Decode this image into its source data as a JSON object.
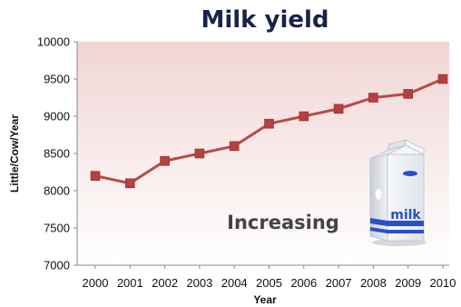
{
  "chart_data": {
    "type": "line",
    "title": "Milk yield",
    "xlabel": "Year",
    "ylabel": "Little/Cow/Year",
    "ylim": [
      7000,
      10000
    ],
    "yticks": [
      7000,
      7500,
      8000,
      8500,
      9000,
      9500,
      10000
    ],
    "categories": [
      "2000",
      "2001",
      "2002",
      "2003",
      "2004",
      "2005",
      "2006",
      "2007",
      "2008",
      "2009",
      "2010"
    ],
    "series": [
      {
        "values": [
          8200,
          8100,
          8400,
          8500,
          8600,
          8900,
          9000,
          9100,
          9250,
          9300,
          9500
        ]
      }
    ],
    "annotation": "Increasing",
    "carton_label": "milk",
    "grid": false,
    "legend": "none",
    "colors": {
      "line": "#b84a4a",
      "marker": "#b5403f",
      "plot_bg_top": "#f1d5d5",
      "plot_bg_bottom": "#ffffff",
      "title": "#17234a",
      "carton_blue": "#2a4fc9"
    }
  }
}
